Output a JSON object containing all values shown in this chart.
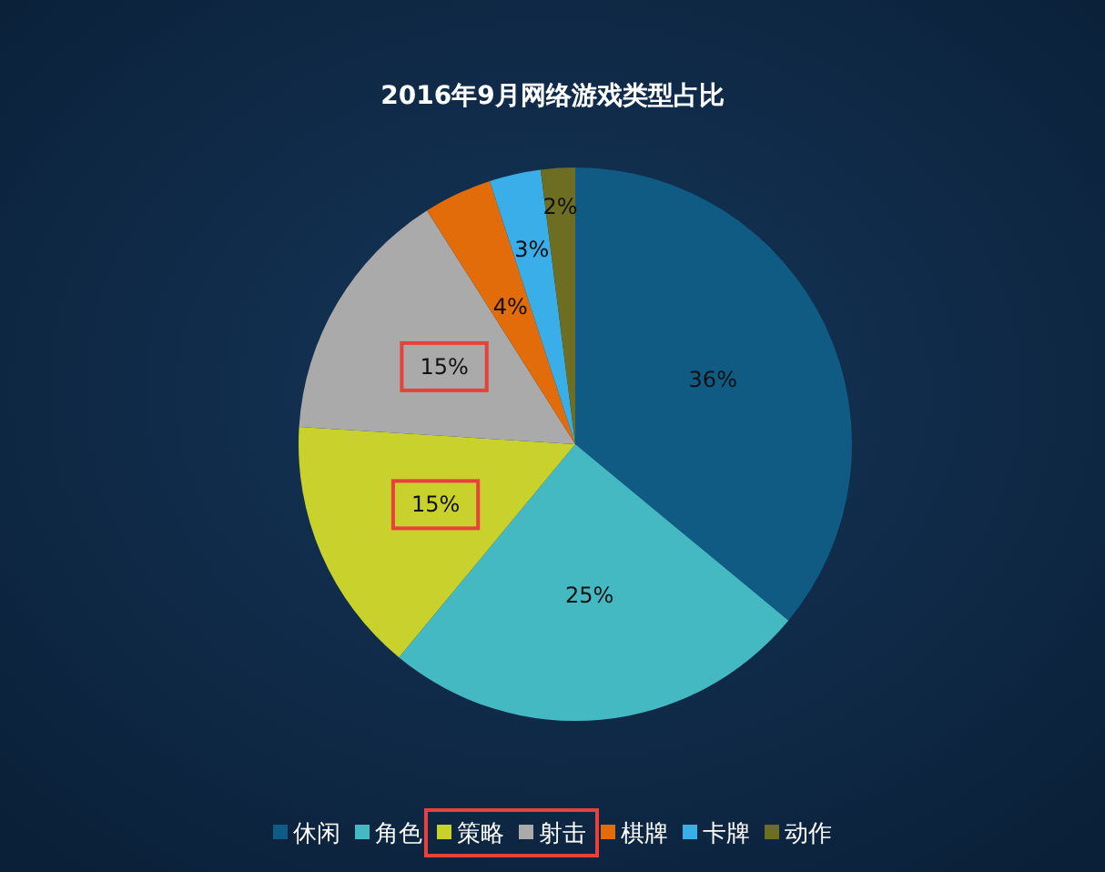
{
  "chart_data": {
    "type": "pie",
    "title": "2016年9月网络游戏类型占比",
    "categories": [
      "休闲",
      "角色",
      "策略",
      "射击",
      "棋牌",
      "卡牌",
      "动作"
    ],
    "values": [
      36,
      25,
      15,
      15,
      4,
      3,
      2
    ],
    "colors": [
      "#0f5b84",
      "#45b9c2",
      "#c9d22c",
      "#aaaaaa",
      "#e36c0a",
      "#3aaee8",
      "#6e6e22"
    ],
    "value_labels": [
      "36%",
      "25%",
      "15%",
      "15%",
      "4%",
      "3%",
      "2%"
    ],
    "legend": "bottom"
  }
}
